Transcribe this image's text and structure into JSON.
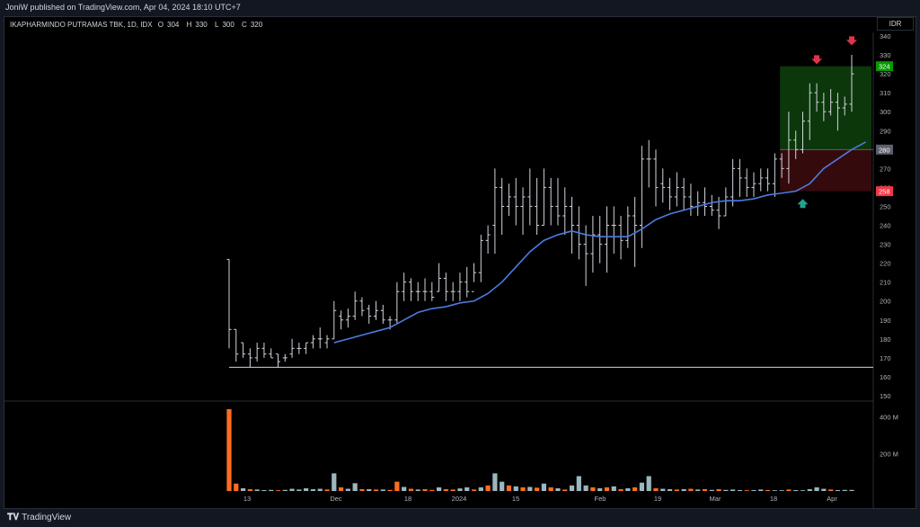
{
  "header": {
    "published": "JoniW published on TradingView.com, Apr 04, 2024 18:10 UTC+7"
  },
  "legend": {
    "symbol": "IKAPHARMINDO PUTRAMAS TBK, 1D, IDX",
    "o_label": "O",
    "o_value": "304",
    "h_label": "H",
    "h_value": "330",
    "l_label": "L",
    "l_value": "300",
    "c_label": "C",
    "c_value": "320"
  },
  "currency": "IDR",
  "footer": {
    "brand": "TradingView"
  },
  "colors": {
    "bar": "#d1d4dc",
    "ma": "#4c7be0",
    "volume_up": "#9ab7bd",
    "volume_down": "#ff6d1f",
    "target_zone": "#0c3d0c",
    "stop_zone": "#3b0b0e",
    "target_label": "#089b00",
    "stop_label": "#f23645",
    "entry_label": "#5d606b",
    "arrow_down": "#e0344b",
    "arrow_up": "#22a48c",
    "support": "#d1d4dc"
  },
  "chart_data": {
    "type": "ohlc",
    "price_axis": {
      "ticks": [
        340,
        330,
        320,
        310,
        300,
        290,
        280,
        270,
        260,
        250,
        240,
        230,
        220,
        210,
        200,
        190,
        180,
        170,
        160,
        150
      ],
      "range": [
        150,
        340
      ]
    },
    "volume_axis": {
      "ticks": [
        {
          "label": "400 M",
          "value": 400
        },
        {
          "label": "200 M",
          "value": 200
        }
      ]
    },
    "x_labels": [
      "13",
      "Dec",
      "18",
      "2024",
      "15",
      "Feb",
      "19",
      "Mar",
      "18",
      "Apr"
    ],
    "bars": [
      [
        222,
        222,
        175,
        185
      ],
      [
        185,
        185,
        168,
        172
      ],
      [
        178,
        178,
        170,
        172
      ],
      [
        172,
        175,
        165,
        170
      ],
      [
        170,
        178,
        168,
        175
      ],
      [
        175,
        178,
        170,
        172
      ],
      [
        172,
        175,
        170,
        170
      ],
      [
        172,
        172,
        165,
        168
      ],
      [
        170,
        172,
        168,
        170
      ],
      [
        172,
        180,
        170,
        175
      ],
      [
        175,
        178,
        172,
        175
      ],
      [
        175,
        178,
        172,
        178
      ],
      [
        178,
        182,
        175,
        180
      ],
      [
        180,
        186,
        175,
        180
      ],
      [
        178,
        182,
        175,
        180
      ],
      [
        180,
        200,
        180,
        195
      ],
      [
        192,
        195,
        185,
        190
      ],
      [
        190,
        196,
        186,
        192
      ],
      [
        192,
        205,
        190,
        200
      ],
      [
        200,
        202,
        192,
        195
      ],
      [
        196,
        198,
        188,
        192
      ],
      [
        192,
        200,
        190,
        195
      ],
      [
        195,
        198,
        188,
        190
      ],
      [
        190,
        192,
        185,
        190
      ],
      [
        190,
        210,
        188,
        205
      ],
      [
        205,
        215,
        200,
        210
      ],
      [
        210,
        212,
        200,
        205
      ],
      [
        205,
        210,
        200,
        205
      ],
      [
        205,
        212,
        200,
        205
      ],
      [
        205,
        210,
        200,
        202
      ],
      [
        205,
        220,
        205,
        212
      ],
      [
        212,
        215,
        200,
        205
      ],
      [
        205,
        210,
        200,
        205
      ],
      [
        205,
        215,
        200,
        210
      ],
      [
        210,
        218,
        202,
        205
      ],
      [
        205,
        220,
        210,
        215
      ],
      [
        215,
        235,
        210,
        232
      ],
      [
        232,
        240,
        225,
        235
      ],
      [
        240,
        270,
        225,
        260
      ],
      [
        260,
        265,
        235,
        250
      ],
      [
        250,
        262,
        245,
        255
      ],
      [
        255,
        265,
        240,
        250
      ],
      [
        250,
        260,
        235,
        255
      ],
      [
        255,
        270,
        240,
        250
      ],
      [
        250,
        265,
        235,
        240
      ],
      [
        240,
        270,
        240,
        260
      ],
      [
        260,
        265,
        240,
        250
      ],
      [
        250,
        265,
        240,
        245
      ],
      [
        245,
        260,
        235,
        250
      ],
      [
        250,
        255,
        225,
        240
      ],
      [
        240,
        250,
        222,
        230
      ],
      [
        230,
        240,
        208,
        225
      ],
      [
        225,
        245,
        215,
        235
      ],
      [
        235,
        245,
        220,
        230
      ],
      [
        230,
        250,
        215,
        240
      ],
      [
        240,
        250,
        225,
        240
      ],
      [
        240,
        245,
        222,
        232
      ],
      [
        232,
        250,
        228,
        245
      ],
      [
        245,
        255,
        218,
        240
      ],
      [
        240,
        282,
        228,
        275
      ],
      [
        275,
        285,
        260,
        275
      ],
      [
        275,
        280,
        250,
        260
      ],
      [
        262,
        270,
        252,
        260
      ],
      [
        260,
        265,
        248,
        255
      ],
      [
        255,
        268,
        250,
        260
      ],
      [
        260,
        265,
        248,
        255
      ],
      [
        255,
        262,
        245,
        250
      ],
      [
        250,
        258,
        245,
        252
      ],
      [
        252,
        260,
        245,
        250
      ],
      [
        250,
        256,
        245,
        248
      ],
      [
        248,
        255,
        238,
        245
      ],
      [
        245,
        260,
        245,
        255
      ],
      [
        255,
        275,
        250,
        270
      ],
      [
        270,
        275,
        255,
        265
      ],
      [
        265,
        270,
        255,
        260
      ],
      [
        260,
        268,
        255,
        262
      ],
      [
        262,
        270,
        258,
        265
      ],
      [
        265,
        270,
        258,
        262
      ],
      [
        262,
        278,
        255,
        275
      ],
      [
        275,
        278,
        265,
        270
      ],
      [
        270,
        300,
        262,
        285
      ],
      [
        285,
        290,
        275,
        280
      ],
      [
        280,
        300,
        278,
        295
      ],
      [
        295,
        315,
        285,
        310
      ],
      [
        310,
        315,
        300,
        305
      ],
      [
        305,
        310,
        295,
        300
      ],
      [
        300,
        312,
        298,
        305
      ],
      [
        305,
        310,
        290,
        302
      ],
      [
        302,
        308,
        298,
        304
      ],
      [
        304,
        330,
        300,
        320
      ]
    ],
    "moving_average": [
      [
        15,
        178
      ],
      [
        17,
        180
      ],
      [
        19,
        182
      ],
      [
        21,
        184
      ],
      [
        23,
        186
      ],
      [
        25,
        190
      ],
      [
        27,
        194
      ],
      [
        29,
        196
      ],
      [
        31,
        197
      ],
      [
        33,
        199
      ],
      [
        35,
        200
      ],
      [
        37,
        204
      ],
      [
        39,
        210
      ],
      [
        41,
        218
      ],
      [
        43,
        226
      ],
      [
        45,
        232
      ],
      [
        47,
        235
      ],
      [
        49,
        237
      ],
      [
        51,
        235
      ],
      [
        53,
        234
      ],
      [
        55,
        234
      ],
      [
        57,
        234
      ],
      [
        59,
        238
      ],
      [
        61,
        243
      ],
      [
        63,
        246
      ],
      [
        65,
        248
      ],
      [
        67,
        250
      ],
      [
        69,
        252
      ],
      [
        71,
        253
      ],
      [
        73,
        253
      ],
      [
        75,
        254
      ],
      [
        77,
        256
      ],
      [
        79,
        257
      ],
      [
        81,
        258
      ],
      [
        83,
        262
      ],
      [
        85,
        270
      ],
      [
        87,
        275
      ],
      [
        89,
        280
      ],
      [
        91,
        284
      ]
    ],
    "volume": [
      [
        440,
        "down"
      ],
      [
        40,
        "down"
      ],
      [
        15,
        "up"
      ],
      [
        10,
        "down"
      ],
      [
        8,
        "up"
      ],
      [
        5,
        "up"
      ],
      [
        6,
        "up"
      ],
      [
        4,
        "down"
      ],
      [
        6,
        "up"
      ],
      [
        12,
        "up"
      ],
      [
        8,
        "up"
      ],
      [
        15,
        "up"
      ],
      [
        10,
        "up"
      ],
      [
        12,
        "up"
      ],
      [
        8,
        "down"
      ],
      [
        95,
        "up"
      ],
      [
        20,
        "down"
      ],
      [
        12,
        "up"
      ],
      [
        42,
        "up"
      ],
      [
        10,
        "down"
      ],
      [
        10,
        "up"
      ],
      [
        8,
        "down"
      ],
      [
        8,
        "up"
      ],
      [
        6,
        "down"
      ],
      [
        50,
        "down"
      ],
      [
        22,
        "up"
      ],
      [
        12,
        "down"
      ],
      [
        8,
        "up"
      ],
      [
        10,
        "down"
      ],
      [
        6,
        "down"
      ],
      [
        20,
        "up"
      ],
      [
        10,
        "down"
      ],
      [
        8,
        "down"
      ],
      [
        14,
        "up"
      ],
      [
        20,
        "up"
      ],
      [
        8,
        "down"
      ],
      [
        20,
        "up"
      ],
      [
        30,
        "down"
      ],
      [
        95,
        "up"
      ],
      [
        50,
        "up"
      ],
      [
        30,
        "down"
      ],
      [
        25,
        "up"
      ],
      [
        20,
        "down"
      ],
      [
        22,
        "up"
      ],
      [
        18,
        "down"
      ],
      [
        40,
        "up"
      ],
      [
        20,
        "down"
      ],
      [
        15,
        "up"
      ],
      [
        8,
        "down"
      ],
      [
        30,
        "up"
      ],
      [
        80,
        "up"
      ],
      [
        30,
        "up"
      ],
      [
        20,
        "down"
      ],
      [
        15,
        "up"
      ],
      [
        20,
        "down"
      ],
      [
        25,
        "up"
      ],
      [
        10,
        "down"
      ],
      [
        15,
        "up"
      ],
      [
        20,
        "down"
      ],
      [
        45,
        "up"
      ],
      [
        80,
        "up"
      ],
      [
        15,
        "down"
      ],
      [
        12,
        "up"
      ],
      [
        10,
        "up"
      ],
      [
        8,
        "down"
      ],
      [
        10,
        "up"
      ],
      [
        12,
        "down"
      ],
      [
        8,
        "up"
      ],
      [
        10,
        "down"
      ],
      [
        6,
        "up"
      ],
      [
        10,
        "down"
      ],
      [
        6,
        "up"
      ],
      [
        8,
        "up"
      ],
      [
        5,
        "up"
      ],
      [
        4,
        "down"
      ],
      [
        5,
        "up"
      ],
      [
        8,
        "up"
      ],
      [
        5,
        "down"
      ],
      [
        4,
        "up"
      ],
      [
        4,
        "up"
      ],
      [
        8,
        "down"
      ],
      [
        5,
        "up"
      ],
      [
        4,
        "up"
      ],
      [
        10,
        "up"
      ],
      [
        20,
        "up"
      ],
      [
        12,
        "up"
      ],
      [
        8,
        "down"
      ],
      [
        5,
        "up"
      ],
      [
        6,
        "up"
      ],
      [
        6,
        "up"
      ]
    ],
    "levels": {
      "target": 324,
      "entry": 280,
      "stop": 258,
      "support": 165
    },
    "level_labels": {
      "target": "324",
      "entry": "280",
      "stop": "258"
    },
    "signals": [
      {
        "type": "sell-arrow",
        "bar": 84,
        "price": 327
      },
      {
        "type": "sell-arrow",
        "bar": 89,
        "price": 337
      },
      {
        "type": "buy-arrow",
        "bar": 82,
        "price": 252
      }
    ]
  }
}
